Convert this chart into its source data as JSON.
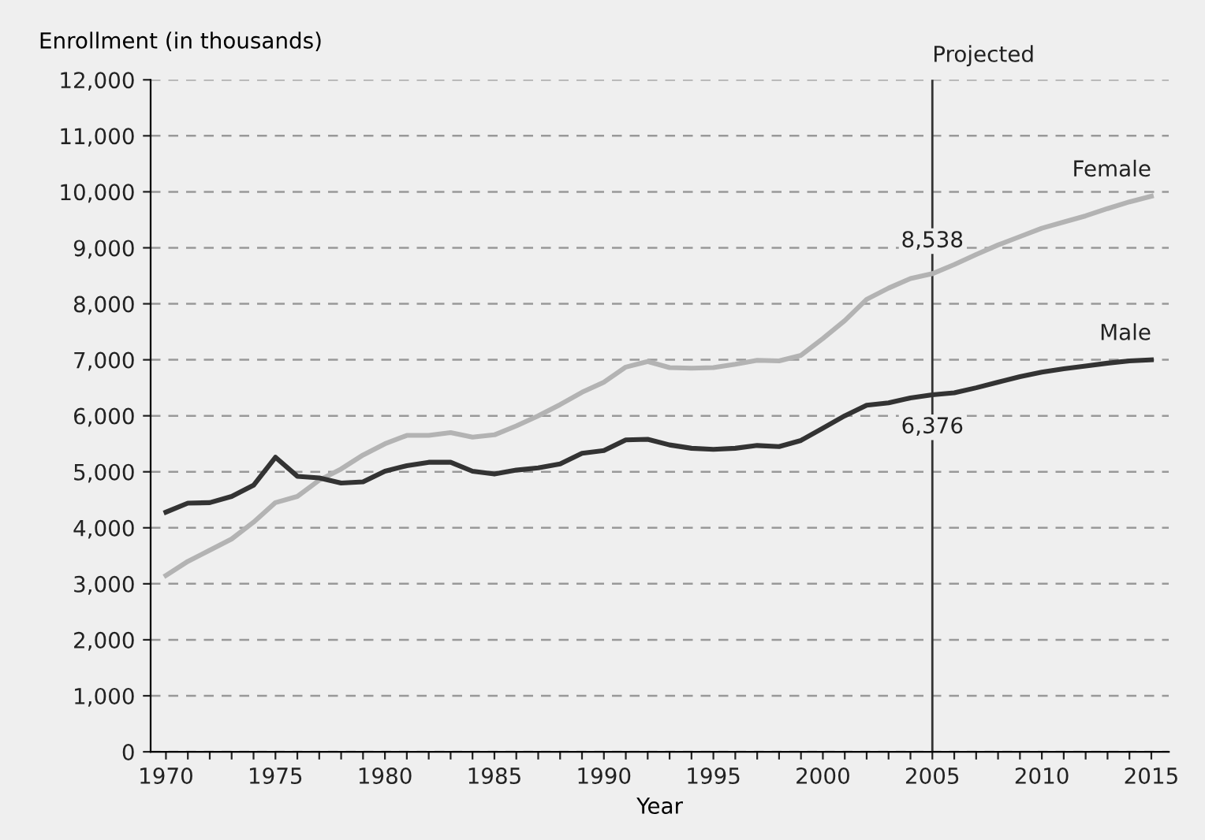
{
  "chart_data": {
    "type": "line",
    "ylabel": "Enrollment (in thousands)",
    "xlabel": "Year",
    "x": [
      1970,
      1971,
      1972,
      1973,
      1974,
      1975,
      1976,
      1977,
      1978,
      1979,
      1980,
      1981,
      1982,
      1983,
      1984,
      1985,
      1986,
      1987,
      1988,
      1989,
      1990,
      1991,
      1992,
      1993,
      1994,
      1995,
      1996,
      1997,
      1998,
      1999,
      2000,
      2001,
      2002,
      2003,
      2004,
      2005,
      2006,
      2007,
      2008,
      2009,
      2010,
      2011,
      2012,
      2013,
      2014,
      2015
    ],
    "series": [
      {
        "name": "Female",
        "color": "#b3b3b3",
        "values": [
          3150,
          3400,
          3600,
          3800,
          4100,
          4450,
          4560,
          4850,
          5050,
          5300,
          5500,
          5650,
          5650,
          5700,
          5620,
          5660,
          5820,
          6000,
          6200,
          6420,
          6600,
          6870,
          6970,
          6860,
          6850,
          6860,
          6920,
          6990,
          6980,
          7080,
          7380,
          7700,
          8080,
          8280,
          8450,
          8538,
          8700,
          8880,
          9050,
          9200,
          9350,
          9460,
          9570,
          9700,
          9820,
          9920
        ]
      },
      {
        "name": "Male",
        "color": "#333333",
        "values": [
          4280,
          4440,
          4450,
          4560,
          4760,
          5260,
          4920,
          4890,
          4800,
          4820,
          5010,
          5110,
          5170,
          5170,
          5010,
          4960,
          5030,
          5070,
          5140,
          5330,
          5380,
          5570,
          5580,
          5480,
          5420,
          5400,
          5420,
          5470,
          5450,
          5560,
          5780,
          6000,
          6190,
          6230,
          6320,
          6376,
          6410,
          6500,
          6600,
          6700,
          6780,
          6840,
          6890,
          6940,
          6980,
          7000
        ]
      }
    ],
    "annotations": [
      {
        "text": "8,538",
        "x": 2005,
        "y": 8538
      },
      {
        "text": "6,376",
        "x": 2005,
        "y": 6376
      }
    ],
    "ref_lines": [
      {
        "axis": "x",
        "value": 2005,
        "label": "Projected",
        "color": "#333333"
      }
    ],
    "xlim": [
      1969.3,
      2015.8
    ],
    "ylim": [
      0,
      12000
    ],
    "xticks": [
      1970,
      {
        "value": 1971,
        "label": null
      },
      {
        "value": 1972,
        "label": null
      },
      {
        "value": 1973,
        "label": null
      },
      {
        "value": 1974,
        "label": null
      },
      1975,
      {
        "value": 1976,
        "label": null
      },
      {
        "value": 1977,
        "label": null
      },
      {
        "value": 1978,
        "label": null
      },
      {
        "value": 1979,
        "label": null
      },
      1980,
      {
        "value": 1981,
        "label": null
      },
      {
        "value": 1982,
        "label": null
      },
      {
        "value": 1983,
        "label": null
      },
      {
        "value": 1984,
        "label": null
      },
      1985,
      {
        "value": 1986,
        "label": null
      },
      {
        "value": 1987,
        "label": null
      },
      {
        "value": 1988,
        "label": null
      },
      {
        "value": 1989,
        "label": null
      },
      1990,
      {
        "value": 1991,
        "label": null
      },
      {
        "value": 1992,
        "label": null
      },
      {
        "value": 1993,
        "label": null
      },
      {
        "value": 1994,
        "label": null
      },
      1995,
      {
        "value": 1996,
        "label": null
      },
      {
        "value": 1997,
        "label": null
      },
      {
        "value": 1998,
        "label": null
      },
      {
        "value": 1999,
        "label": null
      },
      2000,
      {
        "value": 2001,
        "label": null
      },
      {
        "value": 2002,
        "label": null
      },
      {
        "value": 2003,
        "label": null
      },
      {
        "value": 2004,
        "label": null
      },
      2005,
      {
        "value": 2006,
        "label": null
      },
      {
        "value": 2007,
        "label": null
      },
      {
        "value": 2008,
        "label": null
      },
      {
        "value": 2009,
        "label": null
      },
      2010,
      {
        "value": 2011,
        "label": null
      },
      {
        "value": 2012,
        "label": null
      },
      {
        "value": 2013,
        "label": null
      },
      {
        "value": 2014,
        "label": null
      },
      2015
    ],
    "yticks": [
      {
        "value": 0,
        "label": "0"
      },
      {
        "value": 1000,
        "label": "1,000"
      },
      {
        "value": 2000,
        "label": "2,000"
      },
      {
        "value": 3000,
        "label": "3,000"
      },
      {
        "value": 4000,
        "label": "4,000"
      },
      {
        "value": 5000,
        "label": "5,000"
      },
      {
        "value": 6000,
        "label": "6,000"
      },
      {
        "value": 7000,
        "label": "7,000"
      },
      {
        "value": 8000,
        "label": "8,000"
      },
      {
        "value": 9000,
        "label": "9,000"
      },
      {
        "value": 10000,
        "label": "10,000"
      },
      {
        "value": 11000,
        "label": "11,000"
      },
      {
        "value": 12000,
        "label": "12,000"
      }
    ],
    "grid": "y",
    "line_style": "solid",
    "marker": "none",
    "legend": false
  }
}
